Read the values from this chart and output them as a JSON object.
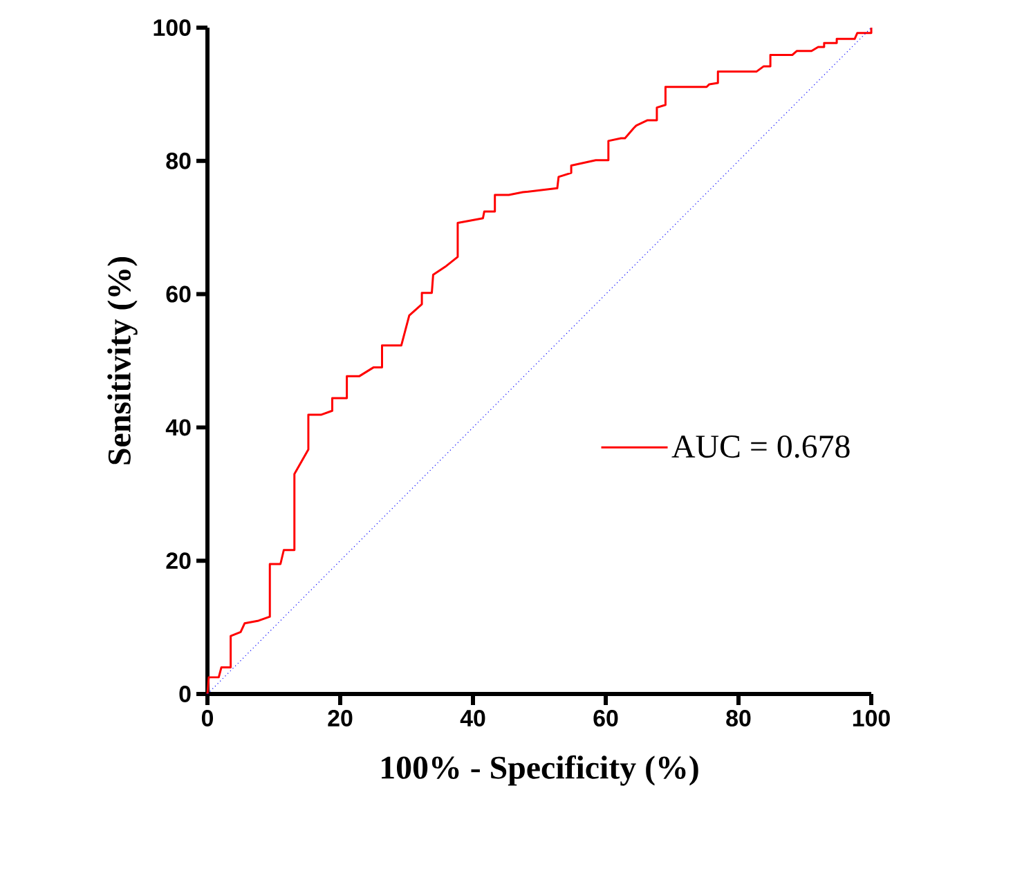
{
  "chart_data": {
    "type": "line",
    "xlabel": "100% - Specificity (%)",
    "ylabel": "Sensitivity (%)",
    "xlim": [
      0,
      100
    ],
    "ylim": [
      0,
      100
    ],
    "xticks": [
      0,
      20,
      40,
      60,
      80,
      100
    ],
    "yticks": [
      0,
      20,
      40,
      60,
      80,
      100
    ],
    "legend": "right",
    "grid": false,
    "series": [
      {
        "name": "AUC = 0.678",
        "color": "#ff0000",
        "line_style": "solid",
        "x": [
          0,
          0.2,
          1.7,
          2.1,
          3.5,
          3.5,
          5,
          5.6,
          7.7,
          9.4,
          9.4,
          11,
          11.5,
          13.1,
          13.1,
          15.2,
          15.2,
          17.1,
          18.8,
          18.8,
          21,
          21,
          22.9,
          25,
          26.3,
          26.3,
          29.2,
          30.4,
          32.3,
          32.3,
          33.8,
          34,
          35.8,
          37.7,
          37.7,
          41.5,
          41.7,
          43.3,
          43.3,
          45.4,
          47.5,
          52.7,
          52.9,
          54.8,
          54.8,
          58.5,
          60.4,
          60.4,
          62.3,
          62.9,
          64.2,
          64.6,
          66.3,
          67.7,
          67.7,
          69,
          69,
          75.2,
          75.6,
          76.9,
          76.9,
          82.7,
          83.8,
          84.8,
          84.8,
          88.1,
          88.8,
          91,
          92,
          92.9,
          92.9,
          94.8,
          94.8,
          97.5,
          97.9,
          100,
          100
        ],
        "values": [
          0,
          2.5,
          2.5,
          4,
          4,
          8.7,
          9.3,
          10.6,
          11,
          11.6,
          19.5,
          19.5,
          21.6,
          21.6,
          33,
          36.7,
          41.9,
          41.9,
          42.5,
          44.4,
          44.4,
          47.7,
          47.7,
          49,
          49,
          52.3,
          52.3,
          56.8,
          58.5,
          60.2,
          60.2,
          62.9,
          64.1,
          65.6,
          70.7,
          71.4,
          72.4,
          72.4,
          74.9,
          74.9,
          75.3,
          75.9,
          77.6,
          78.2,
          79.3,
          80.1,
          80.1,
          83,
          83.4,
          83.4,
          84.9,
          85.3,
          86.1,
          86.1,
          88,
          88.4,
          91.1,
          91.1,
          91.5,
          91.7,
          93.4,
          93.4,
          94.2,
          94.2,
          95.9,
          95.9,
          96.5,
          96.5,
          97.1,
          97.1,
          97.7,
          97.7,
          98.3,
          98.3,
          99.2,
          99.2,
          100
        ]
      },
      {
        "color": "#0000ff",
        "line_style": "dotted",
        "x": [
          0,
          100
        ],
        "values": [
          0,
          100
        ]
      }
    ]
  }
}
